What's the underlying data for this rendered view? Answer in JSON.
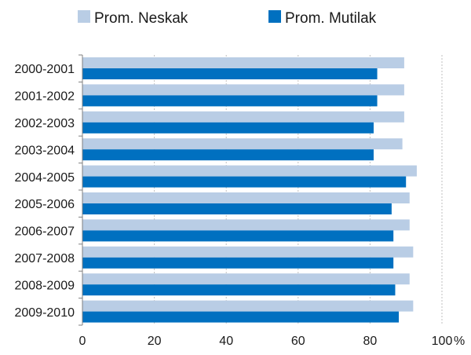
{
  "chart_data": {
    "type": "bar",
    "orientation": "horizontal",
    "categories": [
      "2000-2001",
      "2001-2002",
      "2002-2003",
      "2003-2004",
      "2004-2005",
      "2005-2006",
      "2006-2007",
      "2007-2008",
      "2008-2009",
      "2009-2010"
    ],
    "series": [
      {
        "name": "Prom. Neskak",
        "color": "#b9cde5",
        "values": [
          89.5,
          89.5,
          89.5,
          89,
          93,
          91,
          91,
          92,
          91,
          92
        ]
      },
      {
        "name": "Prom. Mutilak",
        "color": "#0070c0",
        "values": [
          82,
          82,
          81,
          81,
          90,
          86,
          86.5,
          86.5,
          87,
          88
        ]
      }
    ],
    "x_ticks": [
      "0",
      "20",
      "40",
      "60",
      "80",
      "100"
    ],
    "x_unit": "%",
    "xlim": [
      0,
      100
    ],
    "grid": "vertical dashed",
    "legend_position": "top"
  }
}
